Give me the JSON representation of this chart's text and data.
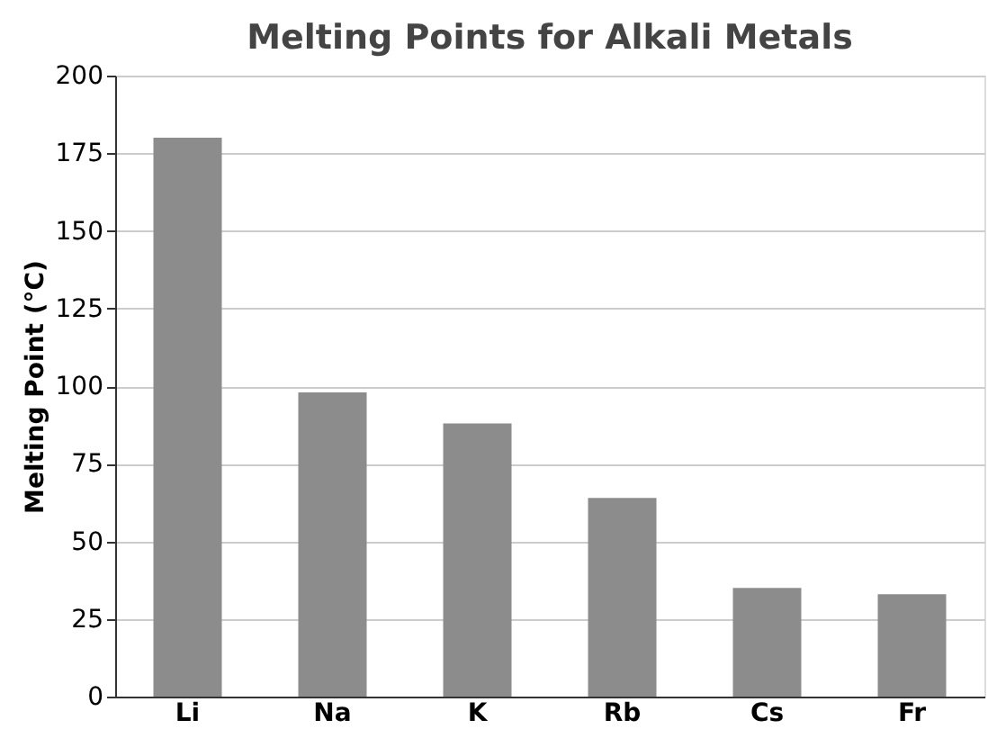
{
  "chart_data": {
    "type": "bar",
    "title": "Melting Points for Alkali Metals",
    "ylabel": "Melting Point (°C)",
    "categories": [
      "Li",
      "Na",
      "K",
      "Rb",
      "Cs",
      "Fr"
    ],
    "values": [
      180,
      98,
      88,
      64,
      35,
      33
    ],
    "color": "#8c8c8c",
    "ylim": [
      0,
      200
    ],
    "yticks": [
      0,
      25,
      50,
      75,
      100,
      125,
      150,
      175,
      200
    ],
    "grid": "y"
  }
}
